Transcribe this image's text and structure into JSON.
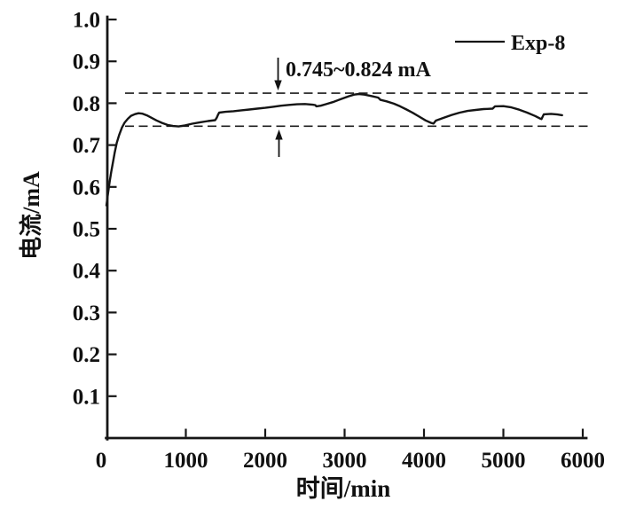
{
  "chart_data": {
    "type": "line",
    "title": "",
    "xlabel": "时间/min",
    "ylabel": "电流/mA",
    "xlim": [
      0,
      6050
    ],
    "ylim": [
      0,
      1.0
    ],
    "grid": false,
    "x_tick_values": [
      0,
      1000,
      2000,
      3000,
      4000,
      5000,
      6000
    ],
    "x_tick_labels": [
      "0",
      "1000",
      "2000",
      "3000",
      "4000",
      "5000",
      "6000"
    ],
    "y_tick_values": [
      0.1,
      0.2,
      0.3,
      0.4,
      0.5,
      0.6,
      0.7,
      0.8,
      0.9,
      1.0
    ],
    "y_tick_labels": [
      "0.1",
      "0.2",
      "0.3",
      "0.4",
      "0.5",
      "0.6",
      "0.7",
      "0.8",
      "0.9",
      "1.0"
    ],
    "legend": {
      "position": "top-right",
      "label": "Exp-8"
    },
    "annotation": {
      "text": "0.745~0.824 mA",
      "range_low_mA": 0.745,
      "range_high_mA": 0.824
    },
    "reference_lines_mA": [
      0.824,
      0.745
    ],
    "series": [
      {
        "name": "Exp-8",
        "color": "#141414",
        "points": [
          [
            0,
            0.556
          ],
          [
            20,
            0.585
          ],
          [
            40,
            0.612
          ],
          [
            60,
            0.636
          ],
          [
            80,
            0.657
          ],
          [
            105,
            0.683
          ],
          [
            130,
            0.705
          ],
          [
            160,
            0.724
          ],
          [
            195,
            0.742
          ],
          [
            230,
            0.754
          ],
          [
            270,
            0.763
          ],
          [
            310,
            0.77
          ],
          [
            360,
            0.774
          ],
          [
            405,
            0.776
          ],
          [
            455,
            0.775
          ],
          [
            510,
            0.771
          ],
          [
            570,
            0.765
          ],
          [
            630,
            0.759
          ],
          [
            700,
            0.753
          ],
          [
            770,
            0.748
          ],
          [
            840,
            0.7455
          ],
          [
            910,
            0.7445
          ],
          [
            990,
            0.747
          ],
          [
            1080,
            0.751
          ],
          [
            1180,
            0.7545
          ],
          [
            1280,
            0.7575
          ],
          [
            1370,
            0.7595
          ],
          [
            1390,
            0.7655
          ],
          [
            1405,
            0.772
          ],
          [
            1420,
            0.7775
          ],
          [
            1500,
            0.7795
          ],
          [
            1600,
            0.781
          ],
          [
            1700,
            0.783
          ],
          [
            1800,
            0.785
          ],
          [
            1900,
            0.787
          ],
          [
            2000,
            0.789
          ],
          [
            2100,
            0.7915
          ],
          [
            2200,
            0.794
          ],
          [
            2300,
            0.796
          ],
          [
            2400,
            0.7975
          ],
          [
            2500,
            0.798
          ],
          [
            2600,
            0.7965
          ],
          [
            2630,
            0.7955
          ],
          [
            2645,
            0.7925
          ],
          [
            2700,
            0.794
          ],
          [
            2760,
            0.7975
          ],
          [
            2850,
            0.8025
          ],
          [
            2950,
            0.8095
          ],
          [
            3050,
            0.8165
          ],
          [
            3120,
            0.8205
          ],
          [
            3180,
            0.822
          ],
          [
            3250,
            0.8205
          ],
          [
            3350,
            0.8165
          ],
          [
            3420,
            0.8135
          ],
          [
            3435,
            0.8115
          ],
          [
            3450,
            0.808
          ],
          [
            3530,
            0.8045
          ],
          [
            3620,
            0.799
          ],
          [
            3700,
            0.7925
          ],
          [
            3780,
            0.785
          ],
          [
            3860,
            0.777
          ],
          [
            3940,
            0.768
          ],
          [
            4020,
            0.759
          ],
          [
            4090,
            0.753
          ],
          [
            4120,
            0.7515
          ],
          [
            4135,
            0.755
          ],
          [
            4150,
            0.7585
          ],
          [
            4250,
            0.7655
          ],
          [
            4350,
            0.772
          ],
          [
            4450,
            0.7775
          ],
          [
            4550,
            0.7815
          ],
          [
            4650,
            0.784
          ],
          [
            4750,
            0.786
          ],
          [
            4800,
            0.7865
          ],
          [
            4865,
            0.787
          ],
          [
            4880,
            0.79
          ],
          [
            4895,
            0.7925
          ],
          [
            5000,
            0.793
          ],
          [
            5100,
            0.79
          ],
          [
            5200,
            0.7845
          ],
          [
            5300,
            0.7775
          ],
          [
            5400,
            0.7695
          ],
          [
            5460,
            0.7635
          ],
          [
            5480,
            0.762
          ],
          [
            5495,
            0.768
          ],
          [
            5510,
            0.7735
          ],
          [
            5600,
            0.7745
          ],
          [
            5680,
            0.773
          ],
          [
            5740,
            0.7715
          ]
        ]
      }
    ]
  }
}
